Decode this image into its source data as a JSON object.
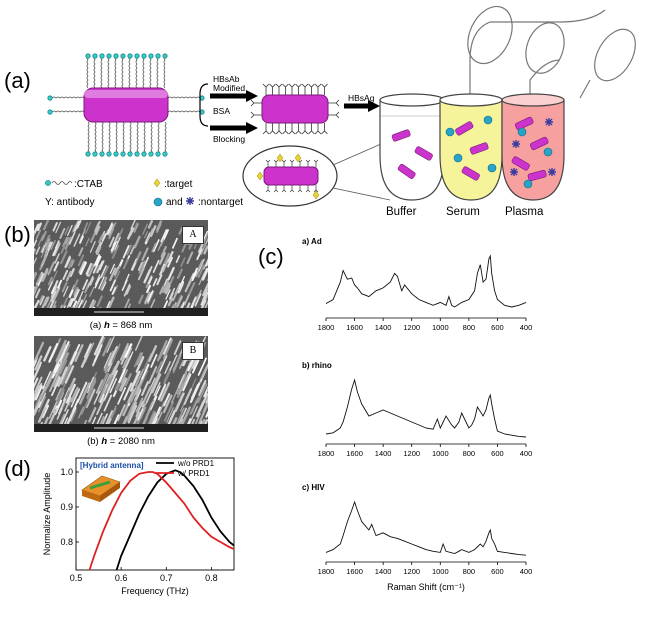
{
  "panel_a": {
    "letter": "(a)",
    "arrow_top_label_1": "HBsAb",
    "arrow_top_label_2": "Modified",
    "arrow_bottom_label_1": "BSA",
    "arrow_bottom_label_2": "Blocking",
    "arrow_right_label": "HBsAg",
    "tubes": [
      "Buffer",
      "Serum",
      "Plasma"
    ],
    "legend_ctab": ":CTAB",
    "legend_target": ":target",
    "legend_antibody": "Y: antibody",
    "legend_and": "and",
    "legend_nontarget": ":nontarget",
    "colors": {
      "rod": "#cc33cc",
      "ctab": "#38c9c9",
      "target": "#e8d23a",
      "serum": "#f6f49a",
      "plasma": "#f6a0a0"
    }
  },
  "panel_b": {
    "letter": "(b)",
    "image_a_label": "A",
    "image_b_label": "B",
    "caption_a_prefix": "(a) ",
    "caption_a_var": "h",
    "caption_a_value": " = 868 nm",
    "caption_b_prefix": "(b) ",
    "caption_b_var": "h",
    "caption_b_value": " = 2080 nm"
  },
  "panel_c": {
    "letter": "(c)",
    "xlabel": "Raman Shift (cm⁻¹)",
    "ticks": [
      "1800",
      "1600",
      "1400",
      "1200",
      "1000",
      "800",
      "600",
      "400"
    ],
    "spectra": [
      {
        "label": "a) Ad"
      },
      {
        "label": "b) rhino"
      },
      {
        "label": "c) HIV"
      }
    ]
  },
  "panel_d": {
    "letter": "(d)",
    "inset_label": "[Hybrid antenna]",
    "xlabel": "Frequency (THz)",
    "ylabel": "Normalize Amplitude",
    "xticks": [
      "0.5",
      "0.6",
      "0.7",
      "0.8"
    ],
    "yticks": [
      "0.8",
      "0.9",
      "1.0"
    ],
    "legend": [
      "w/o PRD1",
      "w/   PRD1"
    ],
    "colors": {
      "without": "#000000",
      "with": "#e02020"
    }
  },
  "chart_data": [
    {
      "type": "line",
      "xlabel": "Raman Shift (cm⁻¹)",
      "xlim": [
        1800,
        400
      ],
      "x_ticks": [
        1800,
        1600,
        1400,
        1200,
        1000,
        800,
        600,
        400
      ],
      "series": [
        {
          "name": "a) Ad",
          "x": [
            1800,
            1750,
            1700,
            1680,
            1650,
            1620,
            1600,
            1580,
            1550,
            1500,
            1450,
            1400,
            1350,
            1320,
            1300,
            1270,
            1250,
            1200,
            1150,
            1100,
            1050,
            1000,
            960,
            940,
            920,
            900,
            850,
            800,
            760,
            740,
            720,
            700,
            680,
            660,
            650,
            640,
            620,
            600,
            550,
            500,
            450,
            400
          ],
          "y": [
            0.18,
            0.25,
            0.55,
            0.75,
            0.6,
            0.62,
            0.5,
            0.45,
            0.35,
            0.3,
            0.4,
            0.45,
            0.55,
            0.7,
            0.65,
            0.4,
            0.5,
            0.35,
            0.25,
            0.2,
            0.15,
            0.2,
            0.15,
            0.3,
            0.15,
            0.12,
            0.2,
            0.25,
            0.4,
            0.7,
            0.85,
            0.55,
            0.6,
            0.95,
            1.0,
            0.7,
            0.4,
            0.25,
            0.15,
            0.12,
            0.15,
            0.2
          ]
        },
        {
          "name": "b) rhino",
          "x": [
            1800,
            1750,
            1700,
            1680,
            1650,
            1620,
            1600,
            1580,
            1550,
            1500,
            1450,
            1400,
            1350,
            1300,
            1250,
            1200,
            1150,
            1100,
            1050,
            1020,
            1000,
            960,
            920,
            900,
            870,
            850,
            820,
            800,
            780,
            760,
            740,
            700,
            680,
            660,
            650,
            640,
            620,
            600,
            550,
            500,
            450,
            400
          ],
          "y": [
            0.1,
            0.12,
            0.2,
            0.3,
            0.55,
            0.85,
            1.0,
            0.8,
            0.6,
            0.4,
            0.45,
            0.5,
            0.45,
            0.4,
            0.35,
            0.3,
            0.25,
            0.2,
            0.18,
            0.35,
            0.2,
            0.4,
            0.25,
            0.2,
            0.3,
            0.45,
            0.3,
            0.2,
            0.25,
            0.35,
            0.55,
            0.4,
            0.5,
            0.7,
            0.75,
            0.6,
            0.35,
            0.15,
            0.1,
            0.08,
            0.06,
            0.05
          ]
        },
        {
          "name": "c) HIV",
          "x": [
            1800,
            1750,
            1700,
            1680,
            1650,
            1620,
            1600,
            1580,
            1550,
            1500,
            1480,
            1450,
            1400,
            1350,
            1300,
            1250,
            1200,
            1150,
            1100,
            1050,
            1000,
            980,
            960,
            900,
            870,
            850,
            800,
            760,
            720,
            700,
            680,
            660,
            650,
            640,
            620,
            600,
            550,
            500,
            450,
            400
          ],
          "y": [
            0.1,
            0.15,
            0.25,
            0.4,
            0.65,
            0.85,
            1.0,
            0.85,
            0.65,
            0.5,
            0.6,
            0.4,
            0.45,
            0.38,
            0.35,
            0.3,
            0.25,
            0.2,
            0.15,
            0.12,
            0.1,
            0.25,
            0.12,
            0.08,
            0.12,
            0.15,
            0.1,
            0.15,
            0.25,
            0.2,
            0.3,
            0.45,
            0.5,
            0.35,
            0.25,
            0.12,
            0.1,
            0.08,
            0.06,
            0.05
          ]
        }
      ]
    },
    {
      "type": "line",
      "xlabel": "Frequency (THz)",
      "ylabel": "Normalize Amplitude",
      "xlim": [
        0.5,
        0.85
      ],
      "ylim": [
        0.72,
        1.04
      ],
      "series": [
        {
          "name": "w/o PRD1",
          "x": [
            0.59,
            0.6,
            0.62,
            0.64,
            0.66,
            0.68,
            0.7,
            0.72,
            0.73,
            0.74,
            0.76,
            0.78,
            0.8,
            0.82,
            0.84,
            0.85
          ],
          "y": [
            0.72,
            0.76,
            0.82,
            0.88,
            0.93,
            0.97,
            0.995,
            1.005,
            1.0,
            0.99,
            0.96,
            0.92,
            0.87,
            0.83,
            0.8,
            0.79
          ]
        },
        {
          "name": "w/   PRD1",
          "x": [
            0.53,
            0.54,
            0.56,
            0.58,
            0.6,
            0.62,
            0.64,
            0.66,
            0.67,
            0.68,
            0.7,
            0.72,
            0.74,
            0.76,
            0.78,
            0.8,
            0.82,
            0.84,
            0.85
          ],
          "y": [
            0.72,
            0.76,
            0.83,
            0.89,
            0.94,
            0.975,
            0.995,
            1.0,
            1.0,
            0.995,
            0.97,
            0.94,
            0.91,
            0.87,
            0.84,
            0.815,
            0.8,
            0.785,
            0.78
          ]
        }
      ]
    }
  ]
}
